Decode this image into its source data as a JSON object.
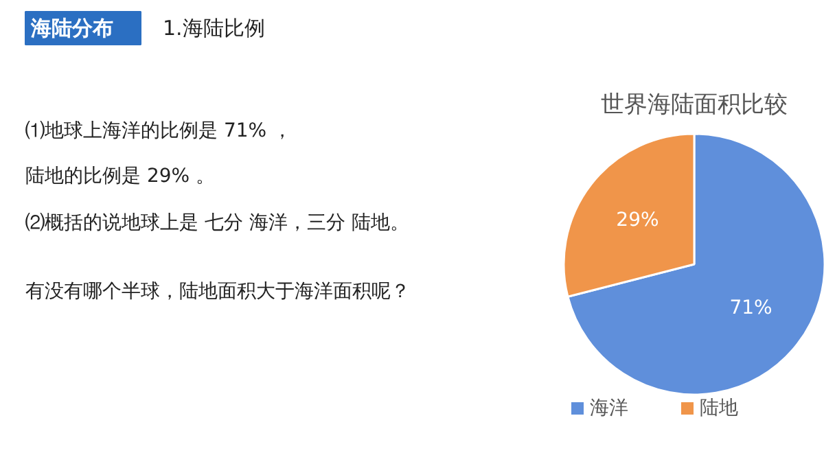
{
  "chart_data": {
    "type": "pie",
    "title": "世界海陆面积比较",
    "categories": [
      "海洋",
      "陆地"
    ],
    "values": [
      71,
      29
    ],
    "colors": [
      "#5f8fdb",
      "#f0954a"
    ],
    "value_labels": [
      "71%",
      "29%"
    ],
    "legend": "bottom",
    "annotations": [
      "海陆分布",
      "1.海陆比例",
      "⑴地球上海洋的比例是 71% ，",
      "陆地的比例是 29% 。",
      "⑵概括的说地球上是 七分 海洋，三分 陆地。",
      "有没有哪个半球，陆地面积大于海洋面积呢？"
    ]
  }
}
